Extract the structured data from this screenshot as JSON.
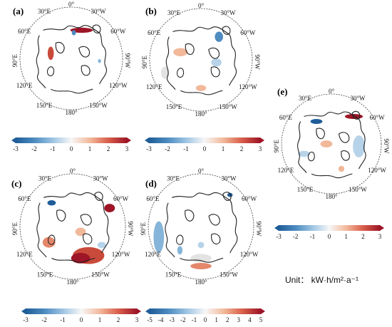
{
  "figure": {
    "unit_text": "Unit： kW·h/m²·a⁻¹",
    "colors": {
      "coastline": "#222222",
      "circle": "#444444",
      "warm": [
        "#fbe3d5",
        "#f2b89a",
        "#e4876a",
        "#c94a3b",
        "#9d1526"
      ],
      "cool": [
        "#e2edf6",
        "#b7d3e9",
        "#86b5d9",
        "#4d8cc1",
        "#1f5d99"
      ],
      "gray": "#e3e3e3"
    },
    "panels": [
      {
        "label": "(a)",
        "lon_labels": [
          "0°",
          "30°E",
          "30°W",
          "60°E",
          "60°W",
          "90°E",
          "90°W",
          "120°E",
          "120°W",
          "150°E",
          "150°W",
          "180°"
        ],
        "colorbar": {
          "ticks": [
            "-3",
            "-2",
            "-1",
            "0",
            "1",
            "2",
            "3"
          ]
        }
      },
      {
        "label": "(b)",
        "lon_labels": [
          "0°",
          "30°E",
          "30°W",
          "60°E",
          "60°W",
          "90°E",
          "90°W",
          "120°E",
          "120°W",
          "150°E",
          "150°W",
          "180°"
        ],
        "colorbar": {
          "ticks": [
            "-3",
            "-2",
            "-1",
            "0",
            "1",
            "2",
            "3"
          ]
        }
      },
      {
        "label": "(c)",
        "lon_labels": [
          "0°",
          "30°E",
          "30°W",
          "60°E",
          "60°W",
          "90°E",
          "90°W",
          "120°E",
          "120°W",
          "150°E",
          "150°W",
          "180°"
        ],
        "colorbar": {
          "ticks": [
            "-3",
            "-2",
            "-1",
            "0",
            "1",
            "2",
            "3"
          ]
        }
      },
      {
        "label": "(d)",
        "lon_labels": [
          "0°",
          "30°E",
          "30°W",
          "60°E",
          "60°W",
          "90°E",
          "90°W",
          "120°E",
          "120°W",
          "150°E",
          "150°W",
          "180°"
        ],
        "colorbar": {
          "ticks": [
            "-5",
            "-4",
            "-3",
            "-2",
            "-1",
            "0",
            "1",
            "2",
            "3",
            "4",
            "5"
          ]
        }
      },
      {
        "label": "(e)",
        "lon_labels": [
          "0°",
          "30°E",
          "30°W",
          "60°E",
          "60°W",
          "90°E",
          "90°W",
          "120°E",
          "120°W",
          "150°E",
          "150°W",
          "180°"
        ],
        "colorbar": {
          "ticks": [
            "-3",
            "-2",
            "-1",
            "0",
            "1",
            "2",
            "3"
          ]
        }
      }
    ]
  }
}
